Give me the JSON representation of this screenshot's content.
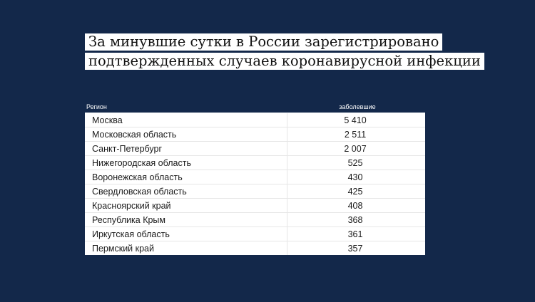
{
  "title": {
    "line1": "За минувшие сутки в России зарегистрировано",
    "line2": "подтвержденных случаев коронавирусной инфекции"
  },
  "chart_data": {
    "type": "table",
    "columns": [
      "Регион",
      "заболевшие"
    ],
    "rows": [
      {
        "region": "Москва",
        "value": "5 410"
      },
      {
        "region": "Московская область",
        "value": "2 511"
      },
      {
        "region": "Санкт-Петербург",
        "value": "2 007"
      },
      {
        "region": "Нижегородская область",
        "value": "525"
      },
      {
        "region": "Воронежская область",
        "value": "430"
      },
      {
        "region": "Свердловская область",
        "value": "425"
      },
      {
        "region": "Красноярский край",
        "value": "408"
      },
      {
        "region": "Республика Крым",
        "value": "368"
      },
      {
        "region": "Иркутская область",
        "value": "361"
      },
      {
        "region": "Пермский край",
        "value": "357"
      }
    ]
  },
  "colors": {
    "background": "#13284a",
    "table_bg": "#ffffff",
    "text": "#1a1a1a"
  }
}
